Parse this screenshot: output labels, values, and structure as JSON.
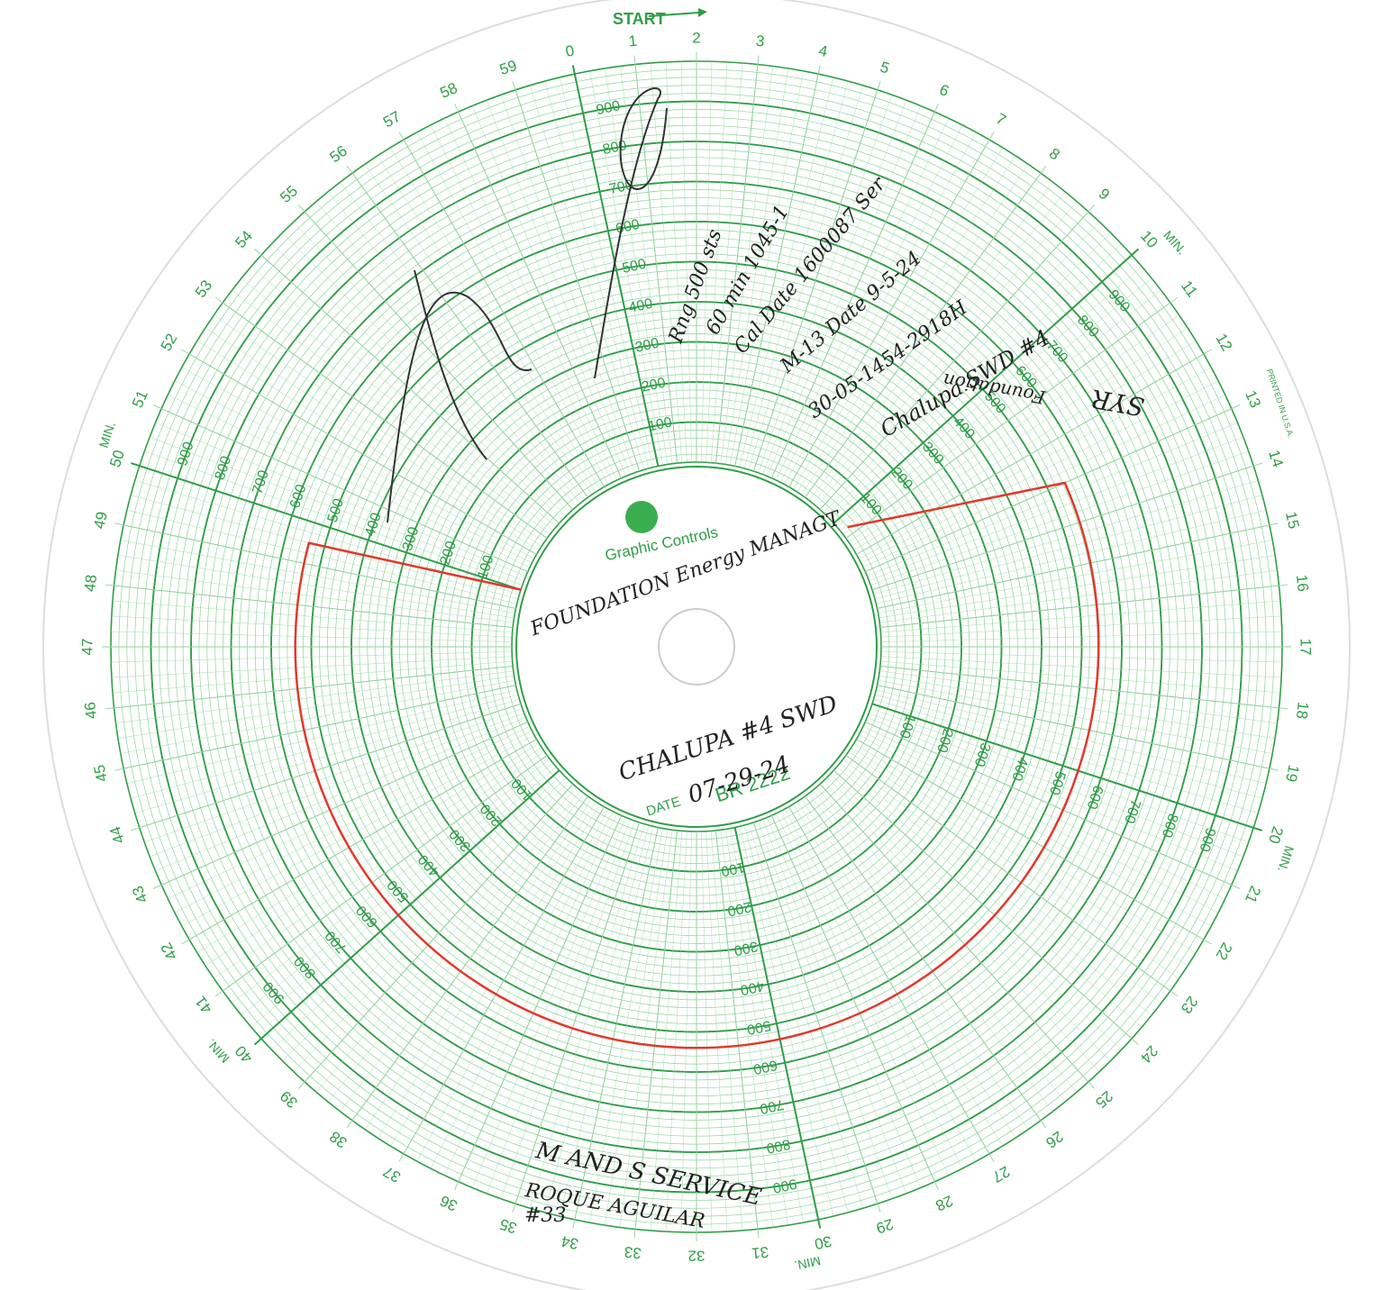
{
  "header": {
    "start": "START"
  },
  "dial": {
    "minute_labels": [
      0,
      1,
      2,
      3,
      4,
      5,
      6,
      7,
      8,
      9,
      10,
      11,
      12,
      13,
      14,
      15,
      16,
      17,
      18,
      19,
      20,
      21,
      22,
      23,
      24,
      25,
      26,
      27,
      28,
      29,
      30,
      31,
      32,
      33,
      34,
      35,
      36,
      37,
      38,
      39,
      40,
      41,
      42,
      43,
      44,
      45,
      46,
      47,
      48,
      49,
      50,
      51,
      52,
      53,
      54,
      55,
      56,
      57,
      58,
      59
    ],
    "min_suffix": "MIN.",
    "scale_labels": [
      100,
      200,
      300,
      400,
      500,
      600,
      700,
      800,
      900
    ]
  },
  "brand": {
    "name": "Graphic Controls",
    "date_label": "DATE",
    "chart_number": "BR 2222",
    "printed": "PRINTED IN U.S.A."
  },
  "handwriting": {
    "company": "FOUNDATION Energy MANAGT",
    "well": "CHALUPA #4 SWD",
    "date": "07-29-24",
    "service": "M AND S SERVICE",
    "technician": "ROQUE AGUILAR",
    "unit": "#33",
    "notes": [
      "SYR",
      "Foundation",
      "Chalupa SWD #4",
      "30-05-1454-2918H",
      "M-13 Date 9-5-24",
      "Cal Date 1600087 Ser",
      "60 min 1045-1",
      "Rng 500 sts"
    ]
  },
  "trace": {
    "minutes": [
      10.6,
      13,
      20,
      30,
      40,
      49.5,
      50
    ],
    "values": [
      20,
      545,
      540,
      540,
      540,
      540,
      0
    ]
  }
}
